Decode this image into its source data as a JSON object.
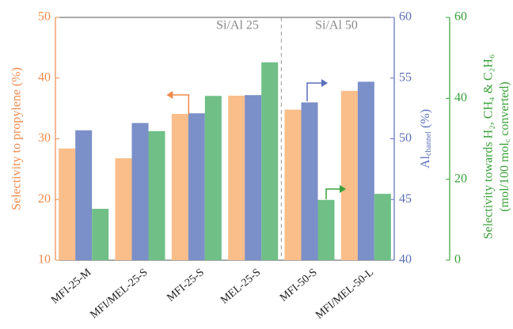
{
  "chart_data": {
    "type": "bar",
    "categories": [
      "MFI-25-M",
      "MFI/MEL-25-S",
      "MFI-25-S",
      "MEL-25-S",
      "MFI-50-S",
      "MFI/MEL-50-L"
    ],
    "series": [
      {
        "name": "Selectivity to propylene",
        "color": "#f9be8a",
        "values": [
          28.4,
          26.8,
          34.1,
          37.1,
          34.8,
          37.9
        ]
      },
      {
        "name": "Al channel",
        "color": "#7b8fc8",
        "axis": "y2",
        "values": [
          50.7,
          51.3,
          52.1,
          53.6,
          53.0,
          54.7
        ]
      },
      {
        "name": "Selectivity towards H2, CH4 & C2H6",
        "color": "#6fbf87",
        "axis": "y3",
        "values": [
          12.7,
          31.9,
          40.6,
          48.9,
          14.9,
          16.4
        ]
      }
    ],
    "ylabel": "Selectivity to propylene (%)",
    "ylim": [
      10,
      50
    ],
    "yticks": [
      10,
      20,
      30,
      40,
      50
    ],
    "ycolor": "#f08a4b",
    "y2label": "Al",
    "y2label_sub": "channel",
    "y2label_unit": "(%)",
    "y2lim": [
      40,
      60
    ],
    "y2ticks": [
      40,
      45,
      50,
      55,
      60
    ],
    "y2color": "#5b6fb8",
    "y3label": "Selectivity towards H₂, CH₄ & C₂H₆",
    "y3label2": "(mol/100 mol",
    "y3label2_sub": "c",
    "y3label2_end": " converted)",
    "y3lim": [
      0,
      60
    ],
    "y3ticks": [
      0,
      20,
      40,
      60
    ],
    "y3color": "#3aa03a",
    "annotations": [
      "Si/Al 25",
      "Si/Al 50"
    ]
  }
}
